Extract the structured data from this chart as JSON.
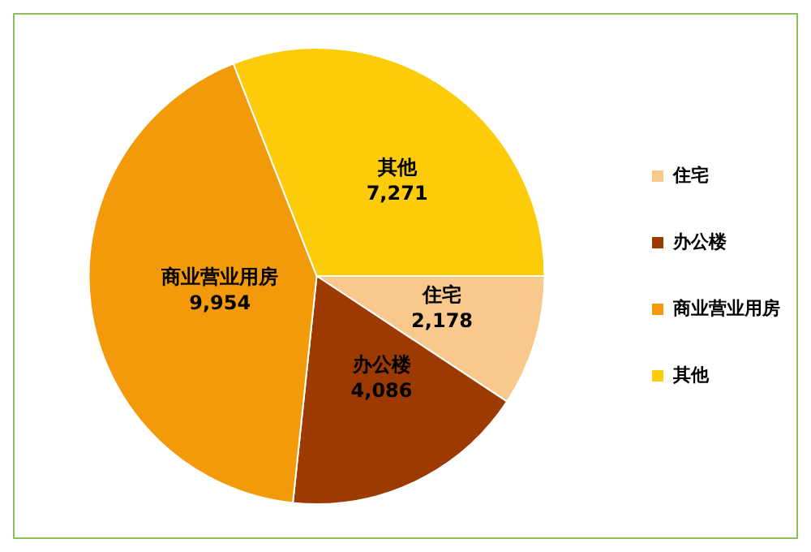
{
  "chart_data": {
    "type": "pie",
    "categories": [
      "住宅",
      "办公楼",
      "商业营业用房",
      "其他"
    ],
    "values": [
      2178,
      4086,
      9954,
      7271
    ],
    "colors": [
      "#f9c88c",
      "#9c3a02",
      "#f39a0a",
      "#fccc0a"
    ],
    "value_labels": [
      "2,178",
      "4,086",
      "9,954",
      "7,271"
    ],
    "legend": "right"
  }
}
